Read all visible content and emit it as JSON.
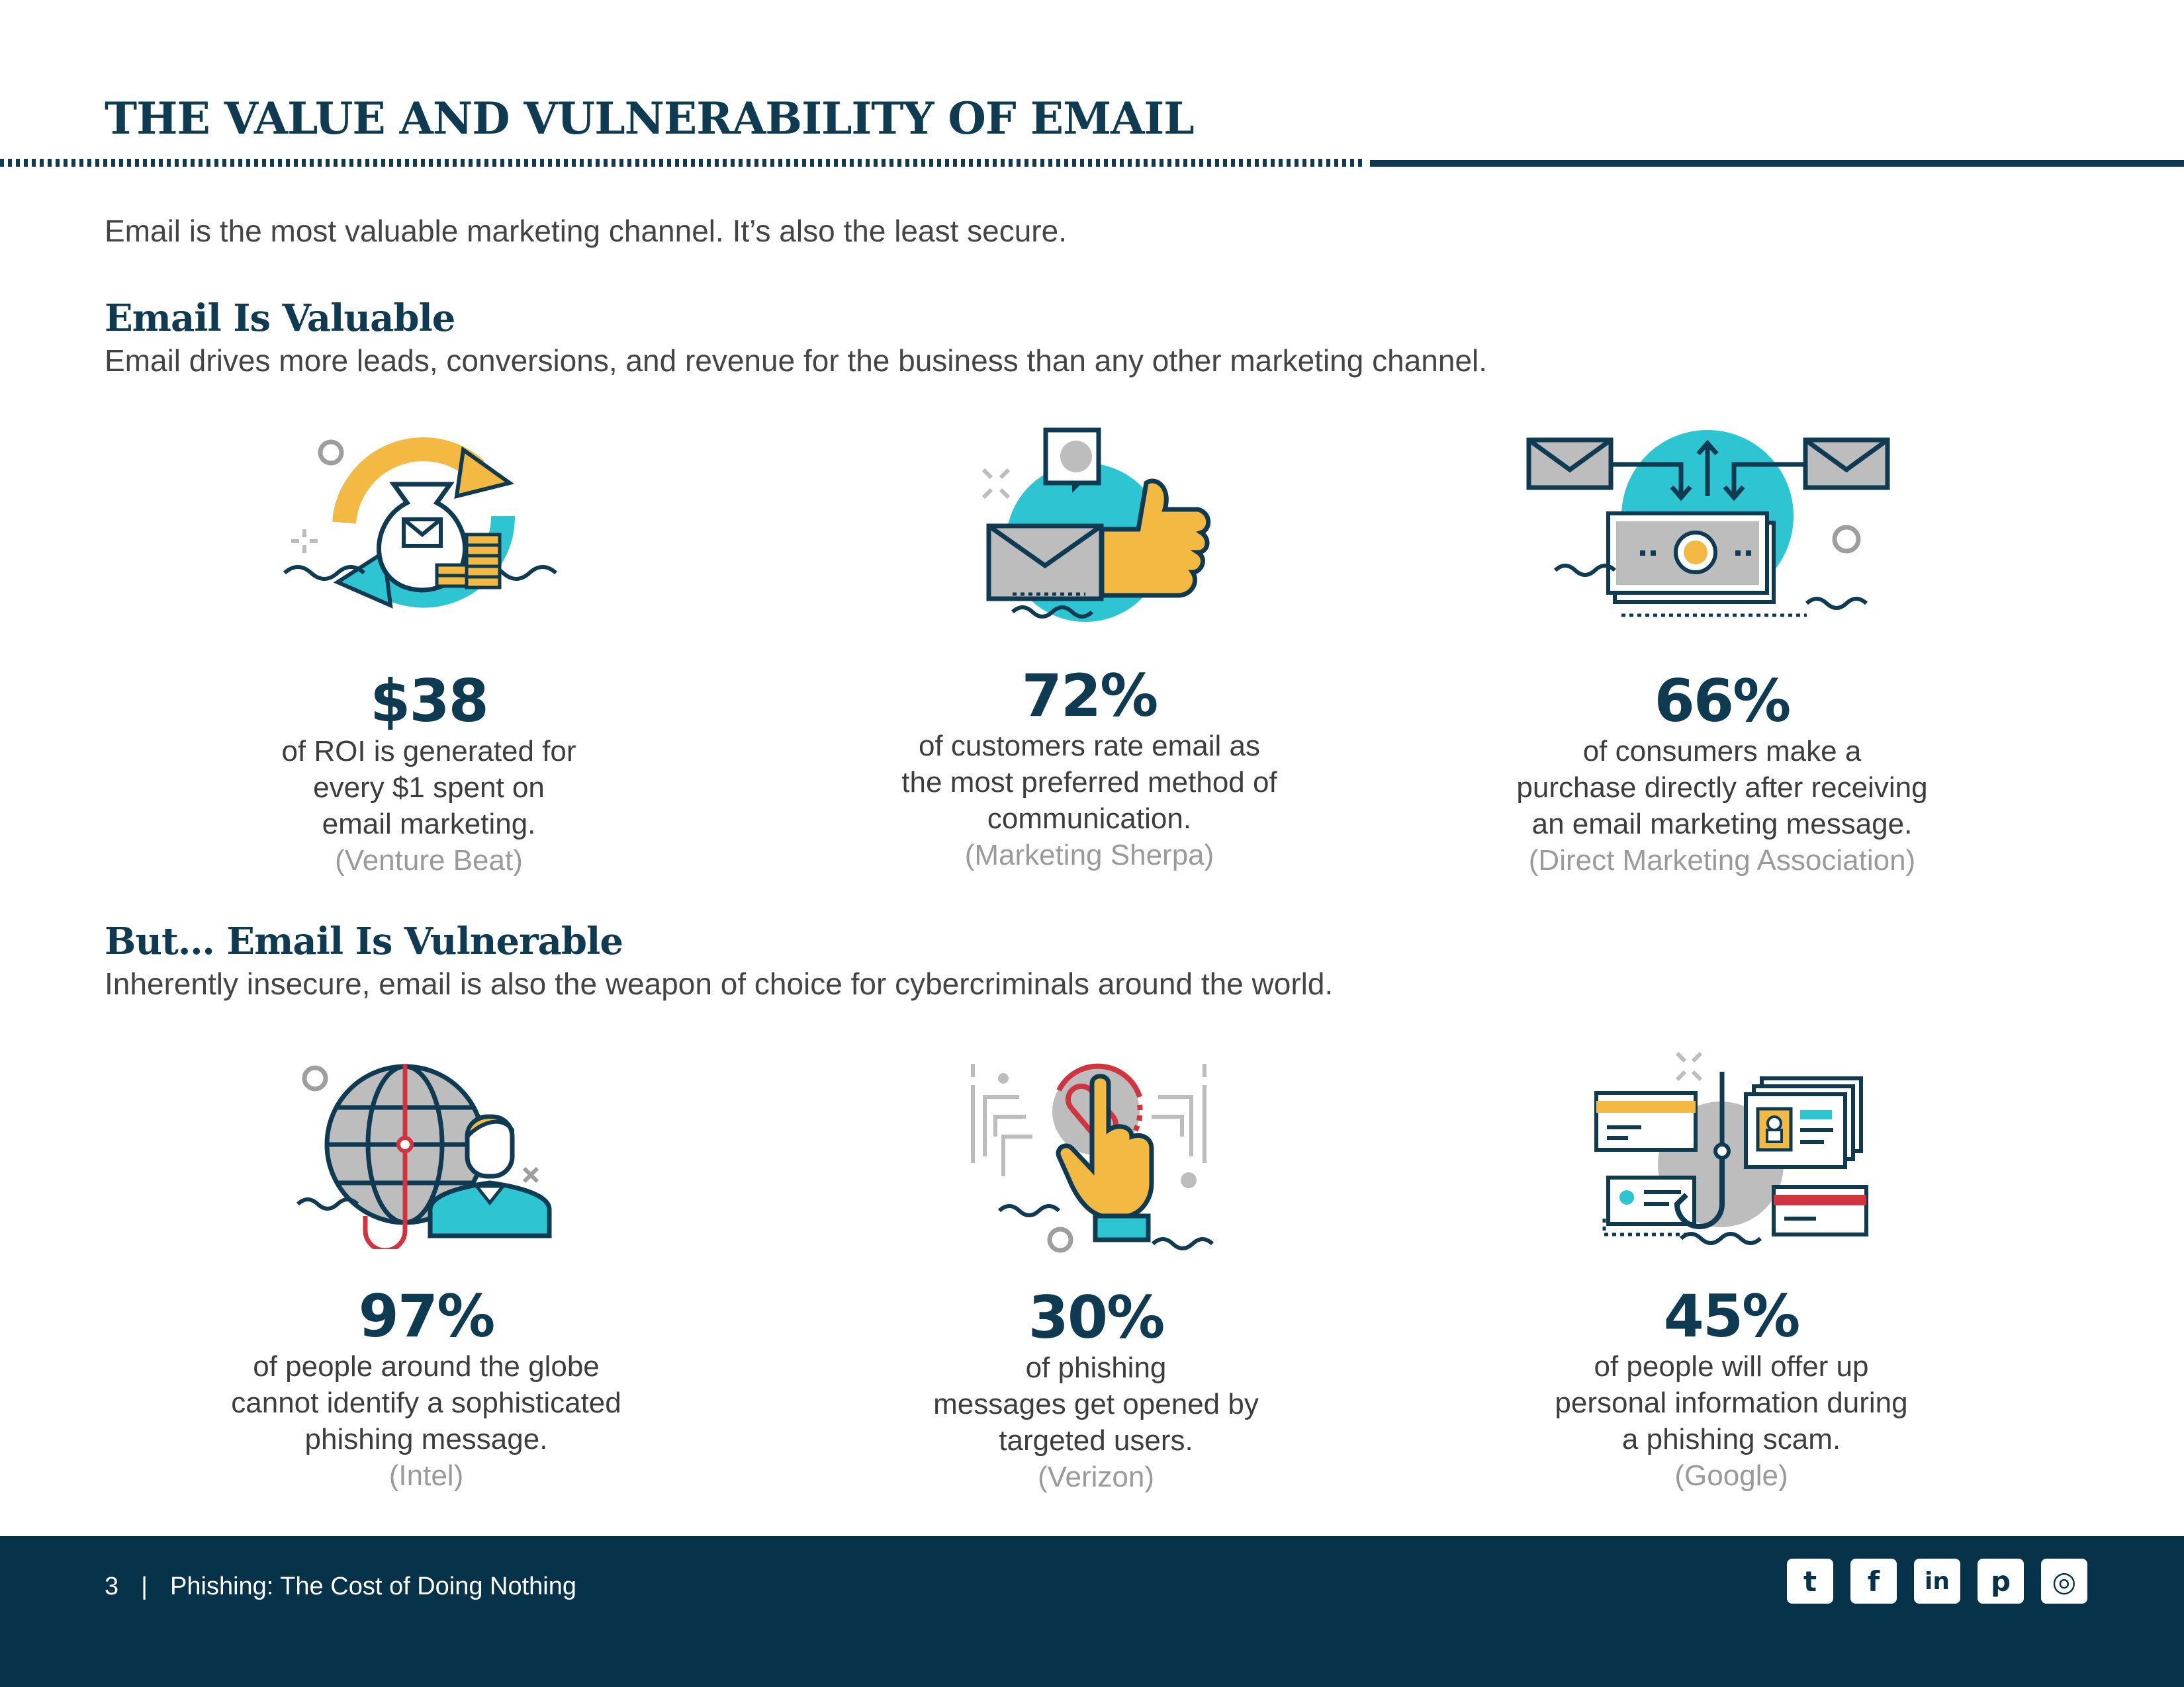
{
  "header": {
    "title": "THE VALUE AND VULNERABILITY OF EMAIL"
  },
  "intro": "Email is the most valuable marketing channel. It’s also the least secure.",
  "valuable": {
    "title": "Email Is Valuable",
    "subtitle": "Email drives more leads, conversions, and revenue for the business than any other marketing channel.",
    "stats": [
      {
        "value": "$38",
        "lines": [
          "of ROI is generated for",
          "every $1 spent on",
          "email marketing."
        ],
        "source": "(Venture Beat)",
        "icon": "money-bag-email-icon"
      },
      {
        "value": "72%",
        "lines": [
          "of customers rate email as",
          "the most preferred method of",
          "communication."
        ],
        "source": "(Marketing Sherpa)",
        "icon": "email-thumbs-up-icon"
      },
      {
        "value": "66%",
        "lines": [
          "of consumers make a",
          "purchase directly after receiving",
          "an email marketing message."
        ],
        "source": "(Direct Marketing Association)",
        "icon": "email-money-exchange-icon"
      }
    ]
  },
  "vulnerable": {
    "title": "But… Email Is Vulnerable",
    "subtitle": "Inherently insecure, email is also the weapon of choice for cybercriminals around the world.",
    "stats": [
      {
        "value": "97%",
        "lines": [
          "of people around the globe",
          "cannot identify a sophisticated",
          "phishing message."
        ],
        "source": "(Intel)",
        "icon": "globe-hook-person-icon"
      },
      {
        "value": "30%",
        "lines": [
          "of phishing",
          "messages get opened by",
          "targeted users."
        ],
        "source": "(Verizon)",
        "icon": "hand-click-attachment-icon"
      },
      {
        "value": "45%",
        "lines": [
          "of people will offer up",
          "personal information during",
          "a phishing scam."
        ],
        "source": "(Google)",
        "icon": "hook-personal-data-icon"
      }
    ]
  },
  "footer": {
    "page_number": "3",
    "separator": "|",
    "doc_title": "Phishing: The Cost of Doing Nothing",
    "social": [
      {
        "icon": "twitter-icon",
        "glyph": "t"
      },
      {
        "icon": "facebook-icon",
        "glyph": "f"
      },
      {
        "icon": "linkedin-icon",
        "glyph": "in"
      },
      {
        "icon": "pinterest-icon",
        "glyph": "p"
      },
      {
        "icon": "instagram-icon",
        "glyph": "◎"
      }
    ]
  },
  "colors": {
    "navy": "#0e3a52",
    "footer": "#06324a",
    "teal": "#2ec5d3",
    "yellow": "#f4b942",
    "red": "#d0343e",
    "gray": "#bdbdbd"
  }
}
